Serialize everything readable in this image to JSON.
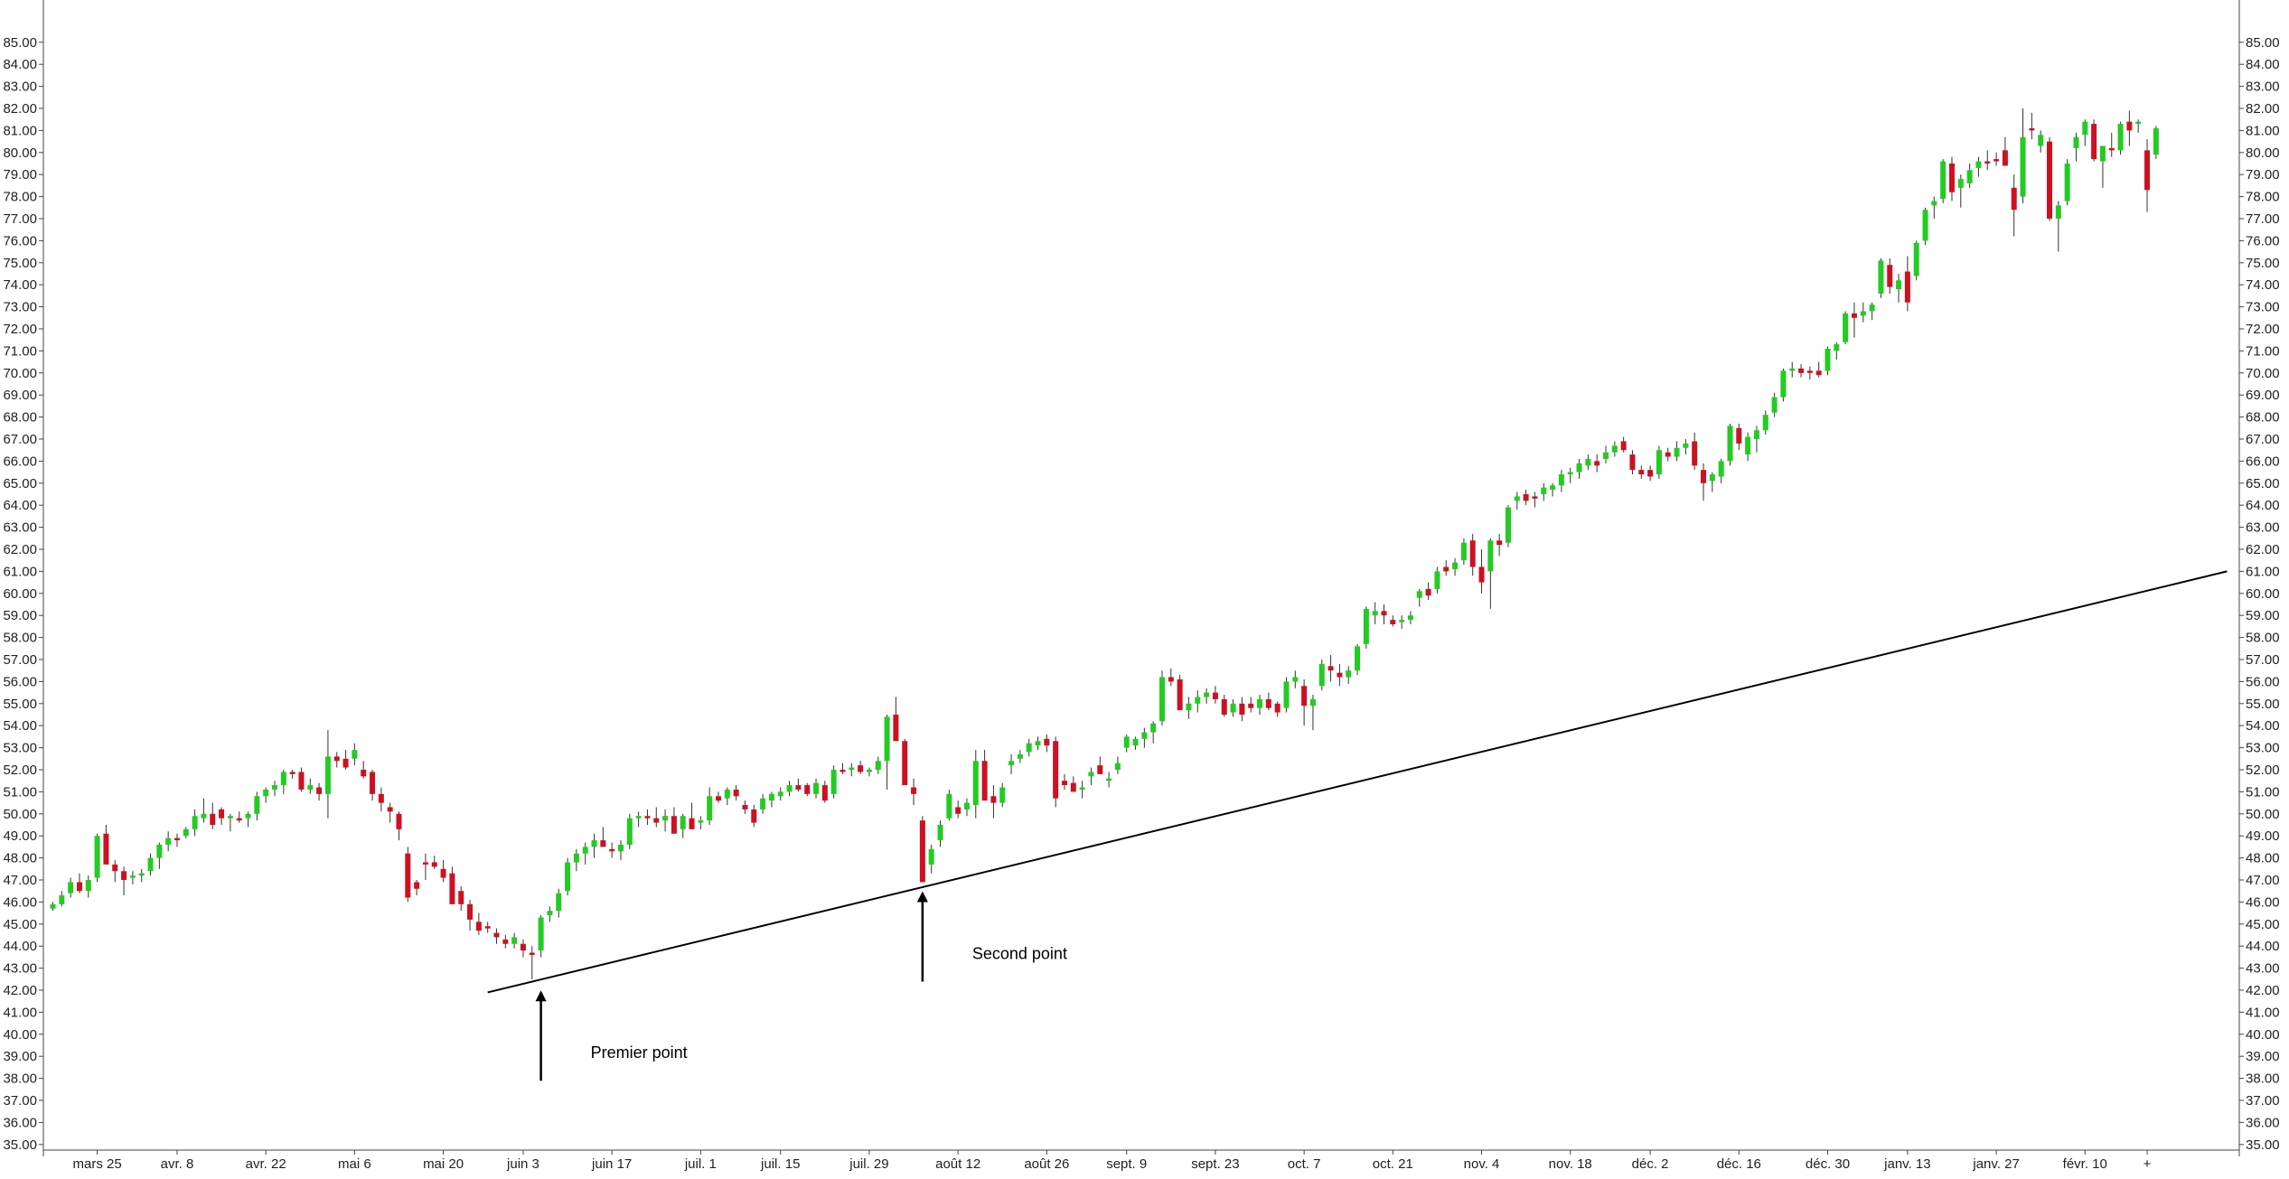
{
  "chart_data": {
    "type": "candlestick",
    "title": "",
    "xlabel": "",
    "ylabel": "",
    "ylim": [
      34,
      85
    ],
    "y_ticks_step": 1,
    "grid": false,
    "y_axis_sides": [
      "left",
      "right"
    ],
    "colors": {
      "up": "#22cc22",
      "down": "#cc1122",
      "line": "#000000",
      "axis": "#444444",
      "text": "#222222"
    },
    "x_labels": [
      "mars 25",
      "avr. 8",
      "avr. 22",
      "mai 6",
      "mai 20",
      "juin 3",
      "juin 17",
      "juil. 1",
      "juil. 15",
      "juil. 29",
      "août 12",
      "août 26",
      "sept. 9",
      "sept. 23",
      "oct. 7",
      "oct. 21",
      "nov. 4",
      "nov. 18",
      "déc. 2",
      "déc. 16",
      "déc. 30",
      "janv. 13",
      "janv. 27",
      "févr. 10",
      "+"
    ],
    "x_label_index": [
      5,
      14,
      24,
      34,
      44,
      53,
      63,
      73,
      82,
      92,
      102,
      112,
      121,
      131,
      141,
      151,
      161,
      171,
      180,
      190,
      200,
      209,
      219,
      229,
      236
    ],
    "trendline": {
      "from_index": 49,
      "from_value": 41.9,
      "to_index": 245,
      "to_value": 61.0
    },
    "annotations": [
      {
        "text": "Premier point",
        "index": 55,
        "value": 42.4
      },
      {
        "text": "Second point",
        "index": 98,
        "value": 46.9
      }
    ],
    "candles": [
      [
        45.7,
        46.0,
        45.6,
        45.9
      ],
      [
        45.9,
        46.5,
        45.8,
        46.3
      ],
      [
        46.4,
        47.1,
        46.2,
        46.9
      ],
      [
        46.9,
        47.3,
        46.4,
        46.5
      ],
      [
        46.5,
        47.2,
        46.2,
        47.0
      ],
      [
        47.1,
        49.1,
        46.9,
        49.0
      ],
      [
        49.1,
        49.5,
        47.8,
        47.7
      ],
      [
        47.7,
        47.9,
        46.9,
        47.4
      ],
      [
        47.4,
        47.6,
        46.3,
        47.0
      ],
      [
        47.1,
        47.4,
        46.8,
        47.2
      ],
      [
        47.2,
        47.5,
        46.9,
        47.3
      ],
      [
        47.4,
        48.2,
        47.2,
        48.0
      ],
      [
        48.0,
        48.7,
        47.5,
        48.6
      ],
      [
        48.6,
        49.2,
        48.3,
        48.9
      ],
      [
        48.9,
        49.1,
        48.5,
        48.8
      ],
      [
        49.0,
        49.4,
        48.9,
        49.3
      ],
      [
        49.3,
        50.2,
        49.0,
        49.9
      ],
      [
        49.8,
        50.7,
        49.6,
        50.0
      ],
      [
        50.0,
        50.5,
        49.3,
        49.5
      ],
      [
        50.2,
        50.3,
        49.5,
        49.8
      ],
      [
        49.8,
        50.0,
        49.2,
        49.9
      ],
      [
        49.8,
        50.1,
        49.6,
        49.7
      ],
      [
        49.8,
        50.1,
        49.4,
        50.0
      ],
      [
        50.0,
        51.0,
        49.7,
        50.8
      ],
      [
        50.8,
        51.2,
        50.5,
        51.1
      ],
      [
        51.1,
        51.5,
        50.8,
        51.3
      ],
      [
        51.3,
        52.0,
        50.9,
        51.9
      ],
      [
        51.9,
        52.0,
        51.6,
        51.8
      ],
      [
        51.9,
        52.1,
        51.0,
        51.1
      ],
      [
        51.1,
        51.6,
        50.9,
        51.3
      ],
      [
        51.2,
        51.4,
        50.6,
        50.9
      ],
      [
        50.9,
        53.8,
        49.8,
        52.6
      ],
      [
        52.6,
        52.8,
        52.1,
        52.4
      ],
      [
        52.5,
        52.9,
        52.0,
        52.1
      ],
      [
        52.5,
        53.2,
        52.2,
        52.9
      ],
      [
        52.0,
        52.4,
        51.6,
        51.7
      ],
      [
        51.9,
        52.0,
        50.6,
        50.9
      ],
      [
        50.9,
        51.2,
        50.1,
        50.5
      ],
      [
        50.3,
        50.5,
        49.6,
        50.1
      ],
      [
        50.0,
        50.1,
        48.8,
        49.3
      ],
      [
        48.2,
        48.5,
        46.0,
        46.2
      ],
      [
        46.9,
        47.0,
        46.3,
        46.6
      ],
      [
        47.8,
        48.2,
        47.0,
        47.7
      ],
      [
        47.8,
        48.1,
        47.5,
        47.6
      ],
      [
        47.5,
        47.9,
        46.9,
        47.1
      ],
      [
        47.3,
        47.6,
        45.9,
        45.9
      ],
      [
        46.5,
        46.7,
        45.6,
        45.9
      ],
      [
        45.9,
        46.1,
        44.7,
        45.2
      ],
      [
        45.1,
        45.5,
        44.5,
        44.7
      ],
      [
        44.9,
        45.1,
        44.6,
        44.8
      ],
      [
        44.6,
        44.8,
        44.1,
        44.4
      ],
      [
        44.3,
        44.5,
        43.9,
        44.1
      ],
      [
        44.1,
        44.6,
        43.9,
        44.4
      ],
      [
        44.1,
        44.3,
        43.5,
        43.8
      ],
      [
        43.7,
        44.0,
        42.5,
        43.6
      ],
      [
        43.8,
        45.4,
        43.5,
        45.3
      ],
      [
        45.4,
        45.8,
        45.1,
        45.6
      ],
      [
        45.6,
        46.6,
        45.3,
        46.4
      ],
      [
        46.5,
        48.0,
        46.3,
        47.8
      ],
      [
        47.8,
        48.4,
        47.4,
        48.2
      ],
      [
        48.2,
        48.7,
        47.7,
        48.5
      ],
      [
        48.5,
        49.1,
        48.0,
        48.8
      ],
      [
        48.8,
        49.4,
        48.6,
        48.5
      ],
      [
        48.4,
        48.7,
        48.0,
        48.3
      ],
      [
        48.3,
        48.8,
        47.9,
        48.6
      ],
      [
        48.6,
        50.0,
        48.4,
        49.8
      ],
      [
        49.8,
        50.1,
        49.4,
        49.9
      ],
      [
        49.9,
        50.2,
        49.5,
        49.8
      ],
      [
        49.8,
        50.3,
        49.4,
        49.6
      ],
      [
        49.7,
        50.2,
        49.2,
        49.9
      ],
      [
        49.9,
        50.3,
        49.2,
        49.1
      ],
      [
        49.3,
        50.0,
        48.9,
        49.9
      ],
      [
        49.8,
        50.5,
        49.5,
        49.3
      ],
      [
        49.6,
        49.9,
        49.3,
        49.7
      ],
      [
        49.7,
        51.2,
        49.5,
        50.8
      ],
      [
        50.8,
        51.0,
        50.5,
        50.6
      ],
      [
        50.7,
        51.2,
        50.4,
        51.1
      ],
      [
        51.1,
        51.3,
        50.6,
        50.8
      ],
      [
        50.4,
        50.6,
        50.0,
        50.2
      ],
      [
        50.2,
        50.4,
        49.4,
        49.6
      ],
      [
        50.2,
        50.9,
        50.0,
        50.7
      ],
      [
        50.6,
        51.0,
        50.3,
        50.9
      ],
      [
        50.8,
        51.2,
        50.6,
        51.0
      ],
      [
        51.0,
        51.5,
        50.8,
        51.3
      ],
      [
        51.3,
        51.6,
        51.0,
        51.1
      ],
      [
        51.3,
        51.4,
        50.8,
        50.9
      ],
      [
        50.9,
        51.6,
        50.7,
        51.4
      ],
      [
        51.3,
        51.5,
        50.5,
        50.6
      ],
      [
        50.9,
        52.2,
        50.7,
        52.0
      ],
      [
        52.0,
        52.3,
        51.8,
        51.9
      ],
      [
        52.0,
        52.3,
        51.7,
        52.1
      ],
      [
        52.2,
        52.4,
        51.8,
        51.9
      ],
      [
        51.9,
        52.1,
        51.7,
        52.0
      ],
      [
        52.0,
        52.6,
        51.8,
        52.4
      ],
      [
        52.4,
        54.5,
        51.1,
        54.4
      ],
      [
        54.5,
        55.3,
        53.8,
        53.3
      ],
      [
        53.3,
        53.4,
        51.8,
        51.3
      ],
      [
        51.2,
        51.6,
        50.4,
        50.9
      ],
      [
        49.7,
        49.9,
        46.9,
        46.9
      ],
      [
        47.7,
        48.6,
        47.3,
        48.4
      ],
      [
        48.8,
        49.7,
        48.5,
        49.5
      ],
      [
        49.8,
        51.1,
        49.7,
        50.9
      ],
      [
        50.3,
        50.6,
        49.8,
        50.0
      ],
      [
        50.2,
        50.7,
        49.9,
        50.5
      ],
      [
        50.4,
        52.9,
        49.8,
        52.4
      ],
      [
        52.4,
        52.9,
        50.8,
        50.6
      ],
      [
        50.8,
        51.3,
        49.8,
        50.5
      ],
      [
        50.5,
        51.4,
        50.3,
        51.2
      ],
      [
        52.2,
        52.7,
        51.8,
        52.4
      ],
      [
        52.5,
        52.9,
        52.3,
        52.7
      ],
      [
        52.8,
        53.4,
        52.6,
        53.2
      ],
      [
        53.1,
        53.5,
        52.9,
        53.3
      ],
      [
        53.4,
        53.6,
        52.8,
        53.1
      ],
      [
        53.3,
        53.5,
        50.3,
        50.7
      ],
      [
        51.5,
        51.8,
        51.1,
        51.3
      ],
      [
        51.4,
        51.7,
        51.0,
        51.0
      ],
      [
        51.1,
        51.5,
        50.7,
        51.2
      ],
      [
        51.7,
        52.1,
        51.3,
        51.9
      ],
      [
        52.2,
        52.6,
        51.8,
        51.8
      ],
      [
        51.5,
        51.9,
        51.2,
        51.6
      ],
      [
        52.0,
        52.6,
        51.8,
        52.3
      ],
      [
        53.0,
        53.6,
        52.8,
        53.5
      ],
      [
        53.1,
        53.5,
        52.9,
        53.4
      ],
      [
        53.4,
        53.9,
        53.0,
        53.7
      ],
      [
        53.7,
        54.2,
        53.2,
        54.1
      ],
      [
        54.2,
        56.5,
        54.0,
        56.2
      ],
      [
        56.2,
        56.6,
        55.8,
        56.0
      ],
      [
        56.1,
        56.3,
        54.8,
        54.7
      ],
      [
        54.7,
        55.3,
        54.3,
        55.0
      ],
      [
        55.0,
        55.6,
        54.6,
        55.3
      ],
      [
        55.3,
        55.7,
        55.0,
        55.5
      ],
      [
        55.5,
        55.8,
        55.0,
        55.2
      ],
      [
        55.2,
        55.4,
        54.4,
        54.5
      ],
      [
        54.6,
        55.2,
        54.4,
        55.0
      ],
      [
        55.0,
        55.3,
        54.2,
        54.5
      ],
      [
        55.0,
        55.3,
        54.6,
        54.8
      ],
      [
        54.8,
        55.4,
        54.5,
        55.2
      ],
      [
        55.2,
        55.5,
        54.7,
        54.8
      ],
      [
        55.0,
        55.1,
        54.4,
        54.6
      ],
      [
        54.8,
        56.2,
        54.6,
        56.0
      ],
      [
        56.0,
        56.5,
        55.7,
        56.2
      ],
      [
        55.8,
        56.1,
        54.0,
        54.9
      ],
      [
        54.9,
        55.4,
        53.8,
        55.2
      ],
      [
        55.8,
        57.0,
        55.6,
        56.8
      ],
      [
        56.7,
        57.2,
        56.0,
        56.5
      ],
      [
        56.4,
        56.8,
        55.8,
        56.2
      ],
      [
        56.2,
        56.7,
        55.9,
        56.5
      ],
      [
        56.5,
        57.7,
        56.3,
        57.6
      ],
      [
        57.7,
        59.4,
        57.5,
        59.3
      ],
      [
        59.0,
        59.6,
        58.6,
        59.2
      ],
      [
        59.2,
        59.5,
        58.6,
        59.0
      ],
      [
        58.8,
        59.0,
        58.5,
        58.6
      ],
      [
        58.7,
        59.0,
        58.4,
        58.8
      ],
      [
        58.8,
        59.2,
        58.6,
        59.0
      ],
      [
        59.8,
        60.2,
        59.4,
        60.1
      ],
      [
        60.2,
        60.5,
        59.7,
        59.9
      ],
      [
        60.2,
        61.2,
        60.0,
        61.0
      ],
      [
        61.2,
        61.5,
        60.8,
        61.0
      ],
      [
        61.1,
        61.6,
        60.8,
        61.4
      ],
      [
        61.5,
        62.5,
        61.3,
        62.3
      ],
      [
        62.4,
        62.7,
        60.8,
        61.2
      ],
      [
        61.2,
        62.0,
        60.0,
        60.5
      ],
      [
        61.0,
        62.5,
        59.3,
        62.4
      ],
      [
        62.4,
        62.7,
        61.7,
        62.2
      ],
      [
        62.3,
        64.0,
        62.1,
        63.9
      ],
      [
        64.2,
        64.6,
        63.8,
        64.4
      ],
      [
        64.5,
        64.7,
        64.0,
        64.2
      ],
      [
        64.4,
        64.6,
        63.9,
        64.3
      ],
      [
        64.5,
        65.0,
        64.2,
        64.8
      ],
      [
        64.7,
        65.0,
        64.4,
        64.9
      ],
      [
        64.9,
        65.6,
        64.6,
        65.4
      ],
      [
        65.4,
        65.7,
        65.0,
        65.5
      ],
      [
        65.5,
        66.1,
        65.2,
        65.9
      ],
      [
        65.8,
        66.3,
        65.6,
        66.1
      ],
      [
        66.0,
        66.3,
        65.5,
        65.8
      ],
      [
        66.1,
        66.7,
        65.9,
        66.4
      ],
      [
        66.4,
        66.9,
        66.2,
        66.7
      ],
      [
        66.9,
        67.1,
        66.4,
        66.5
      ],
      [
        66.3,
        66.5,
        65.4,
        65.6
      ],
      [
        65.6,
        65.8,
        65.2,
        65.4
      ],
      [
        65.6,
        65.8,
        65.1,
        65.3
      ],
      [
        65.4,
        66.7,
        65.2,
        66.5
      ],
      [
        66.4,
        66.6,
        66.0,
        66.2
      ],
      [
        66.2,
        66.9,
        66.0,
        66.6
      ],
      [
        66.6,
        67.0,
        66.3,
        66.8
      ],
      [
        66.9,
        67.3,
        65.6,
        65.8
      ],
      [
        65.6,
        65.9,
        64.2,
        65.0
      ],
      [
        65.1,
        65.5,
        64.6,
        65.4
      ],
      [
        65.3,
        66.1,
        65.0,
        66.0
      ],
      [
        66.0,
        67.7,
        65.8,
        67.6
      ],
      [
        67.5,
        67.7,
        66.5,
        66.8
      ],
      [
        66.3,
        67.3,
        66.0,
        67.1
      ],
      [
        67.0,
        67.6,
        66.4,
        67.4
      ],
      [
        67.4,
        68.3,
        67.2,
        68.1
      ],
      [
        68.2,
        69.1,
        68.0,
        68.9
      ],
      [
        68.9,
        70.2,
        68.7,
        70.1
      ],
      [
        70.1,
        70.5,
        69.8,
        70.2
      ],
      [
        70.2,
        70.4,
        69.8,
        70.0
      ],
      [
        70.1,
        70.3,
        69.7,
        70.0
      ],
      [
        70.1,
        70.5,
        69.8,
        69.9
      ],
      [
        70.1,
        71.2,
        69.9,
        71.1
      ],
      [
        71.0,
        71.4,
        70.6,
        71.3
      ],
      [
        71.4,
        72.8,
        71.3,
        72.7
      ],
      [
        72.7,
        73.2,
        71.6,
        72.5
      ],
      [
        72.6,
        73.2,
        72.3,
        72.8
      ],
      [
        72.8,
        73.2,
        72.4,
        73.1
      ],
      [
        73.6,
        75.2,
        73.4,
        75.1
      ],
      [
        74.9,
        75.2,
        73.6,
        73.9
      ],
      [
        73.8,
        74.5,
        73.2,
        74.2
      ],
      [
        74.6,
        75.3,
        72.8,
        73.2
      ],
      [
        74.4,
        76.0,
        74.2,
        75.9
      ],
      [
        76.0,
        77.5,
        75.8,
        77.4
      ],
      [
        77.6,
        78.0,
        77.0,
        77.8
      ],
      [
        77.9,
        79.7,
        77.7,
        79.6
      ],
      [
        79.5,
        79.8,
        77.8,
        78.2
      ],
      [
        78.4,
        79.0,
        77.5,
        78.8
      ],
      [
        78.6,
        79.5,
        78.4,
        79.2
      ],
      [
        79.3,
        79.8,
        78.9,
        79.6
      ],
      [
        79.6,
        80.1,
        79.2,
        79.5
      ],
      [
        79.7,
        80.0,
        79.4,
        79.6
      ],
      [
        80.1,
        80.7,
        79.6,
        79.4
      ],
      [
        78.4,
        79.0,
        76.2,
        77.4
      ],
      [
        78.0,
        82.0,
        77.7,
        80.7
      ],
      [
        81.1,
        81.8,
        80.6,
        81.0
      ],
      [
        80.3,
        81.0,
        80.0,
        80.8
      ],
      [
        80.5,
        80.7,
        76.9,
        77.0
      ],
      [
        77.0,
        77.8,
        75.5,
        77.6
      ],
      [
        77.8,
        79.7,
        77.6,
        79.5
      ],
      [
        80.2,
        80.9,
        79.6,
        80.7
      ],
      [
        80.8,
        81.5,
        80.3,
        81.4
      ],
      [
        81.3,
        81.5,
        79.6,
        79.7
      ],
      [
        79.6,
        80.2,
        78.4,
        80.3
      ],
      [
        80.2,
        80.9,
        79.8,
        80.1
      ],
      [
        80.1,
        81.4,
        79.9,
        81.3
      ],
      [
        81.4,
        81.9,
        80.3,
        81.0
      ],
      [
        81.3,
        81.5,
        80.9,
        81.4
      ],
      [
        80.1,
        80.6,
        77.3,
        78.3
      ],
      [
        79.9,
        81.2,
        79.7,
        81.1
      ]
    ]
  }
}
